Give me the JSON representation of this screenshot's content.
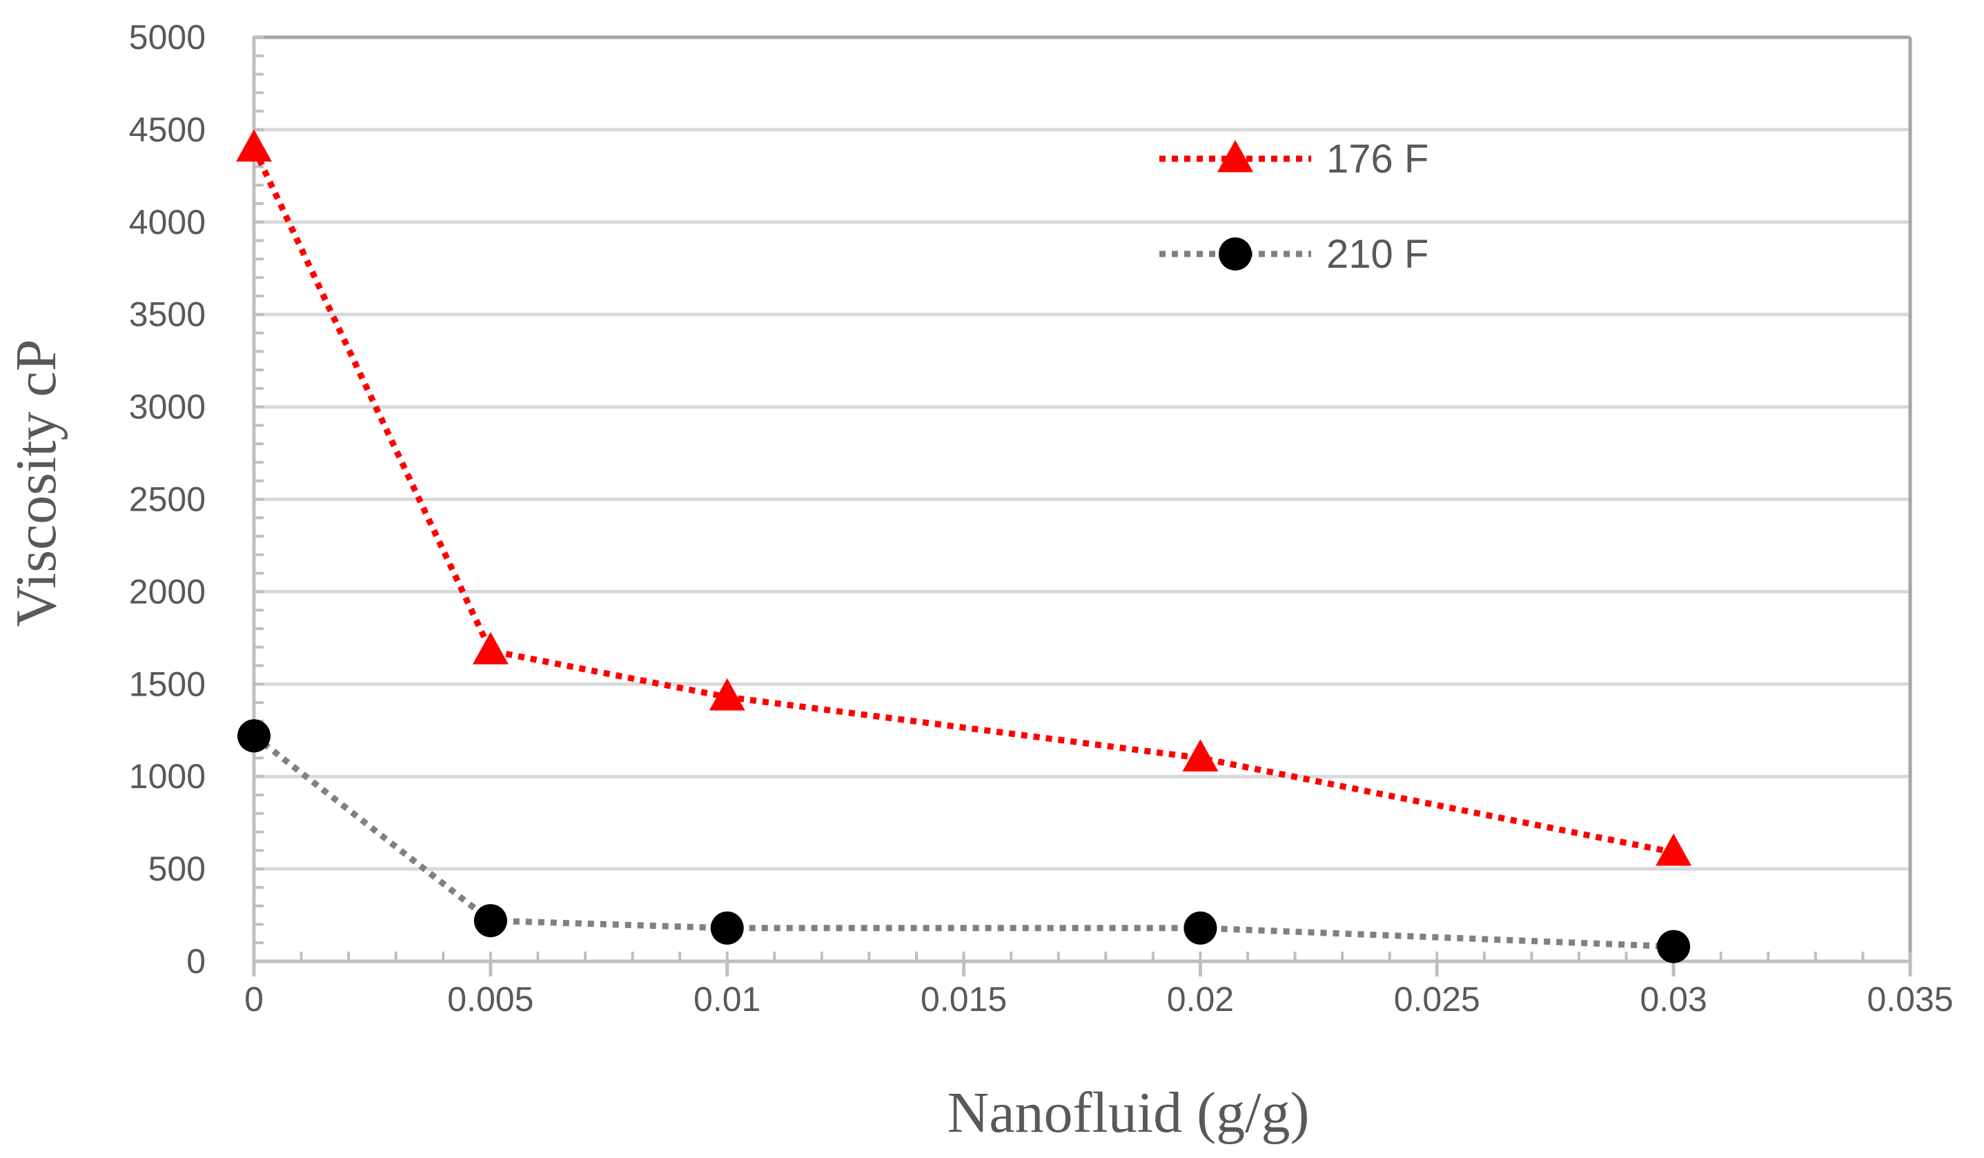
{
  "chart_data": {
    "type": "line",
    "title": "",
    "xlabel": "Nanofluid (g/g)",
    "ylabel": "Viscosity cP",
    "xlim": [
      0,
      0.035
    ],
    "ylim": [
      0,
      5000
    ],
    "x_ticks": [
      0,
      0.005,
      0.01,
      0.015,
      0.02,
      0.025,
      0.03,
      0.035
    ],
    "x_tick_labels": [
      "0",
      "0.005",
      "0.01",
      "0.015",
      "0.02",
      "0.025",
      "0.03",
      "0.035"
    ],
    "y_ticks": [
      0,
      500,
      1000,
      1500,
      2000,
      2500,
      3000,
      3500,
      4000,
      4500,
      5000
    ],
    "y_tick_labels": [
      "0",
      "500",
      "1000",
      "1500",
      "2000",
      "2500",
      "3000",
      "3500",
      "4000",
      "4500",
      "5000"
    ],
    "grid": "horizontal",
    "legend_position": "top-right",
    "series": [
      {
        "name": "176 F",
        "color": "#ff0000",
        "line_color": "#ff0000",
        "marker": "triangle",
        "line_style": "dotted",
        "x": [
          0,
          0.005,
          0.01,
          0.02,
          0.03
        ],
        "y": [
          4400,
          1680,
          1430,
          1100,
          590
        ]
      },
      {
        "name": "210 F",
        "color": "#000000",
        "line_color": "#808080",
        "marker": "circle",
        "line_style": "dotted",
        "x": [
          0,
          0.005,
          0.01,
          0.02,
          0.03
        ],
        "y": [
          1220,
          220,
          180,
          180,
          80
        ]
      }
    ]
  }
}
